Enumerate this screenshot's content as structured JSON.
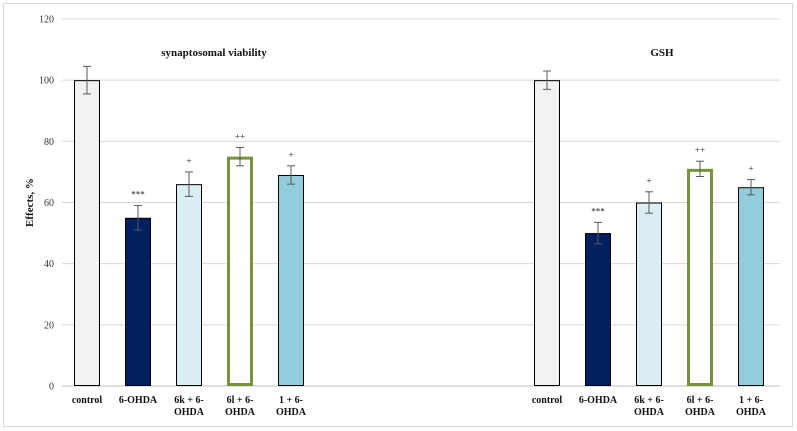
{
  "chart_data": {
    "type": "bar",
    "ylabel": "Effects, %",
    "ylim": [
      0,
      120
    ],
    "yticks": [
      0,
      20,
      40,
      60,
      80,
      100,
      120
    ],
    "grid": true,
    "legend": "none",
    "groups": [
      {
        "title": "synaptosomal viability",
        "bars": [
          {
            "category": [
              "control"
            ],
            "value": 100,
            "error": 4.5,
            "annotation": "",
            "color": "#f2f2f2",
            "stroke": "#000000"
          },
          {
            "category": [
              "6-OHDA"
            ],
            "value": 55,
            "error": 4,
            "annotation": "***",
            "color": "#002060",
            "stroke": "#000000"
          },
          {
            "category": [
              "6k + 6-",
              "OHDA"
            ],
            "value": 66,
            "error": 4,
            "annotation": "+",
            "color": "#dbeef4",
            "stroke": "#000000"
          },
          {
            "category": [
              "6l + 6-",
              "OHDA"
            ],
            "value": 75,
            "error": 3,
            "annotation": "++",
            "color": "#ffffff",
            "stroke": "#77933c"
          },
          {
            "category": [
              "1 + 6-",
              "OHDA"
            ],
            "value": 69,
            "error": 3,
            "annotation": "+",
            "color": "#92cddc",
            "stroke": "#000000"
          }
        ]
      },
      {
        "title": "GSH",
        "bars": [
          {
            "category": [
              "control"
            ],
            "value": 100,
            "error": 3,
            "annotation": "",
            "color": "#f2f2f2",
            "stroke": "#000000"
          },
          {
            "category": [
              "6-OHDA"
            ],
            "value": 50,
            "error": 3.5,
            "annotation": "***",
            "color": "#002060",
            "stroke": "#000000"
          },
          {
            "category": [
              "6k + 6-",
              "OHDA"
            ],
            "value": 60,
            "error": 3.5,
            "annotation": "+",
            "color": "#dbeef4",
            "stroke": "#000000"
          },
          {
            "category": [
              "6l + 6-",
              "OHDA"
            ],
            "value": 71,
            "error": 2.5,
            "annotation": "++",
            "color": "#ffffff",
            "stroke": "#77933c"
          },
          {
            "category": [
              "1 + 6-",
              "OHDA"
            ],
            "value": 65,
            "error": 2.5,
            "annotation": "+",
            "color": "#92cddc",
            "stroke": "#000000"
          }
        ]
      }
    ]
  }
}
